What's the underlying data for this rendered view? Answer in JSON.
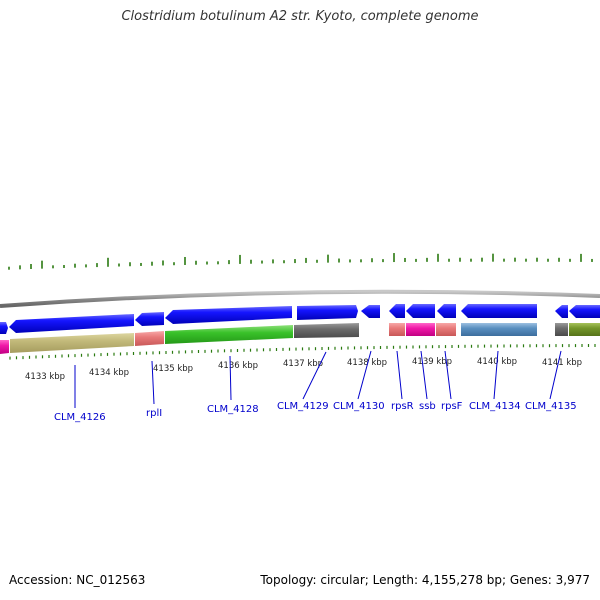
{
  "title": "Clostridium botulinum A2 str. Kyoto, complete genome",
  "footer": {
    "accession": "Accession: NC_012563",
    "summary": "Topology: circular; Length: 4,155,278 bp; Genes: 3,977"
  },
  "colors": {
    "forward_strand": "#0a0af0",
    "backbone": "#888888",
    "tick": "#2a7a10",
    "gene_label": "#0000cc"
  },
  "kbp_labels": [
    "4133 kbp",
    "4134 kbp",
    "4135 kbp",
    "4136 kbp",
    "4137 kbp",
    "4138 kbp",
    "4139 kbp",
    "4140 kbp",
    "4141 kbp"
  ],
  "gene_labels": [
    "CLM_4126",
    "rplI",
    "CLM_4128",
    "CLM_4129",
    "CLM_4130",
    "rpsR",
    "ssb",
    "rpsF",
    "CLM_4134",
    "CLM_4135"
  ]
}
